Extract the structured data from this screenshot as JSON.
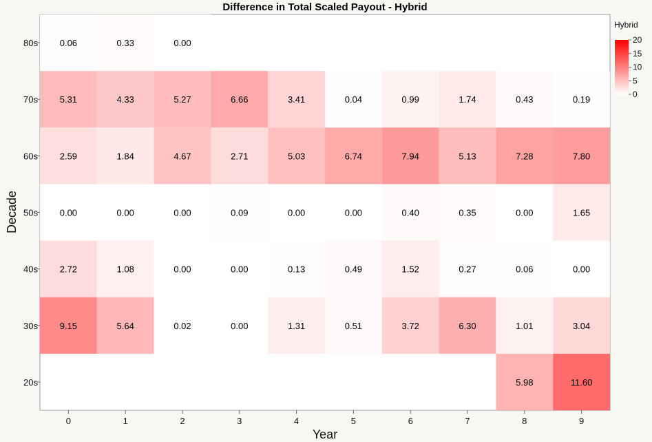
{
  "chart_data": {
    "type": "heatmap",
    "title": "Difference in Total Scaled Payout - Hybrid",
    "xlabel": "Year",
    "ylabel": "Decade",
    "x_categories": [
      "0",
      "1",
      "2",
      "3",
      "4",
      "5",
      "6",
      "7",
      "8",
      "9"
    ],
    "y_categories": [
      "80s",
      "70s",
      "60s",
      "50s",
      "40s",
      "30s",
      "20s"
    ],
    "values": [
      [
        0.06,
        0.33,
        0.0,
        null,
        null,
        null,
        null,
        null,
        null,
        null
      ],
      [
        5.31,
        4.33,
        5.27,
        6.66,
        3.41,
        0.04,
        0.99,
        1.74,
        0.43,
        0.19
      ],
      [
        2.59,
        1.84,
        4.67,
        2.71,
        5.03,
        6.74,
        7.94,
        5.13,
        7.28,
        7.8
      ],
      [
        0.0,
        0.0,
        0.0,
        0.09,
        0.0,
        0.0,
        0.4,
        0.35,
        0.0,
        1.65
      ],
      [
        2.72,
        1.08,
        0.0,
        0.0,
        0.13,
        0.49,
        1.52,
        0.27,
        0.06,
        0.0
      ],
      [
        9.15,
        5.64,
        0.02,
        0.0,
        1.31,
        0.51,
        3.72,
        6.3,
        1.01,
        3.04
      ],
      [
        null,
        null,
        null,
        null,
        null,
        null,
        null,
        null,
        5.98,
        11.6
      ]
    ],
    "color_scale": {
      "title": "Hybrid",
      "min": 0,
      "max": 20,
      "ticks": [
        "20",
        "15",
        "10",
        "5",
        "0"
      ],
      "low_color": "#ffffff",
      "high_color": "#ff0000"
    },
    "grid": false,
    "legend_position": "top-right"
  }
}
